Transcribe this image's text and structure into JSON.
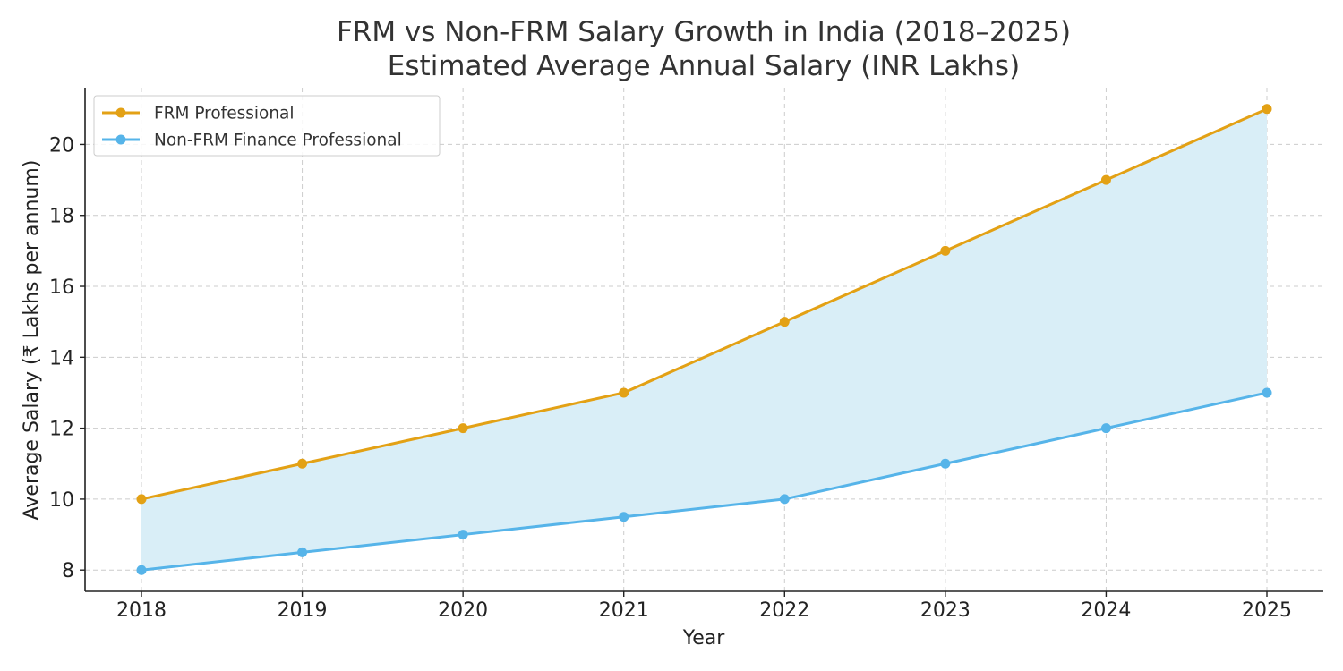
{
  "chart_data": {
    "type": "line",
    "title": "FRM vs Non-FRM Salary Growth in India (2018–2025)",
    "subtitle": "Estimated Average Annual Salary (INR Lakhs)",
    "xlabel": "Year",
    "ylabel": "Average Salary (₹ Lakhs per annum)",
    "categories": [
      "2018",
      "2019",
      "2020",
      "2021",
      "2022",
      "2023",
      "2024",
      "2025"
    ],
    "series": [
      {
        "name": "FRM Professional",
        "values": [
          10,
          11,
          12,
          13,
          15,
          17,
          19,
          21
        ],
        "color": "#E3A115"
      },
      {
        "name": "Non-FRM Finance Professional",
        "values": [
          8,
          8.5,
          9,
          9.5,
          10,
          11,
          12,
          13
        ],
        "color": "#56B4E9"
      }
    ],
    "fill_between_color": "#D9EEF7",
    "yticks": [
      8,
      10,
      12,
      14,
      16,
      18,
      20
    ],
    "ylim": [
      7.4,
      21.6
    ],
    "grid": true,
    "legend_position": "top-left"
  }
}
